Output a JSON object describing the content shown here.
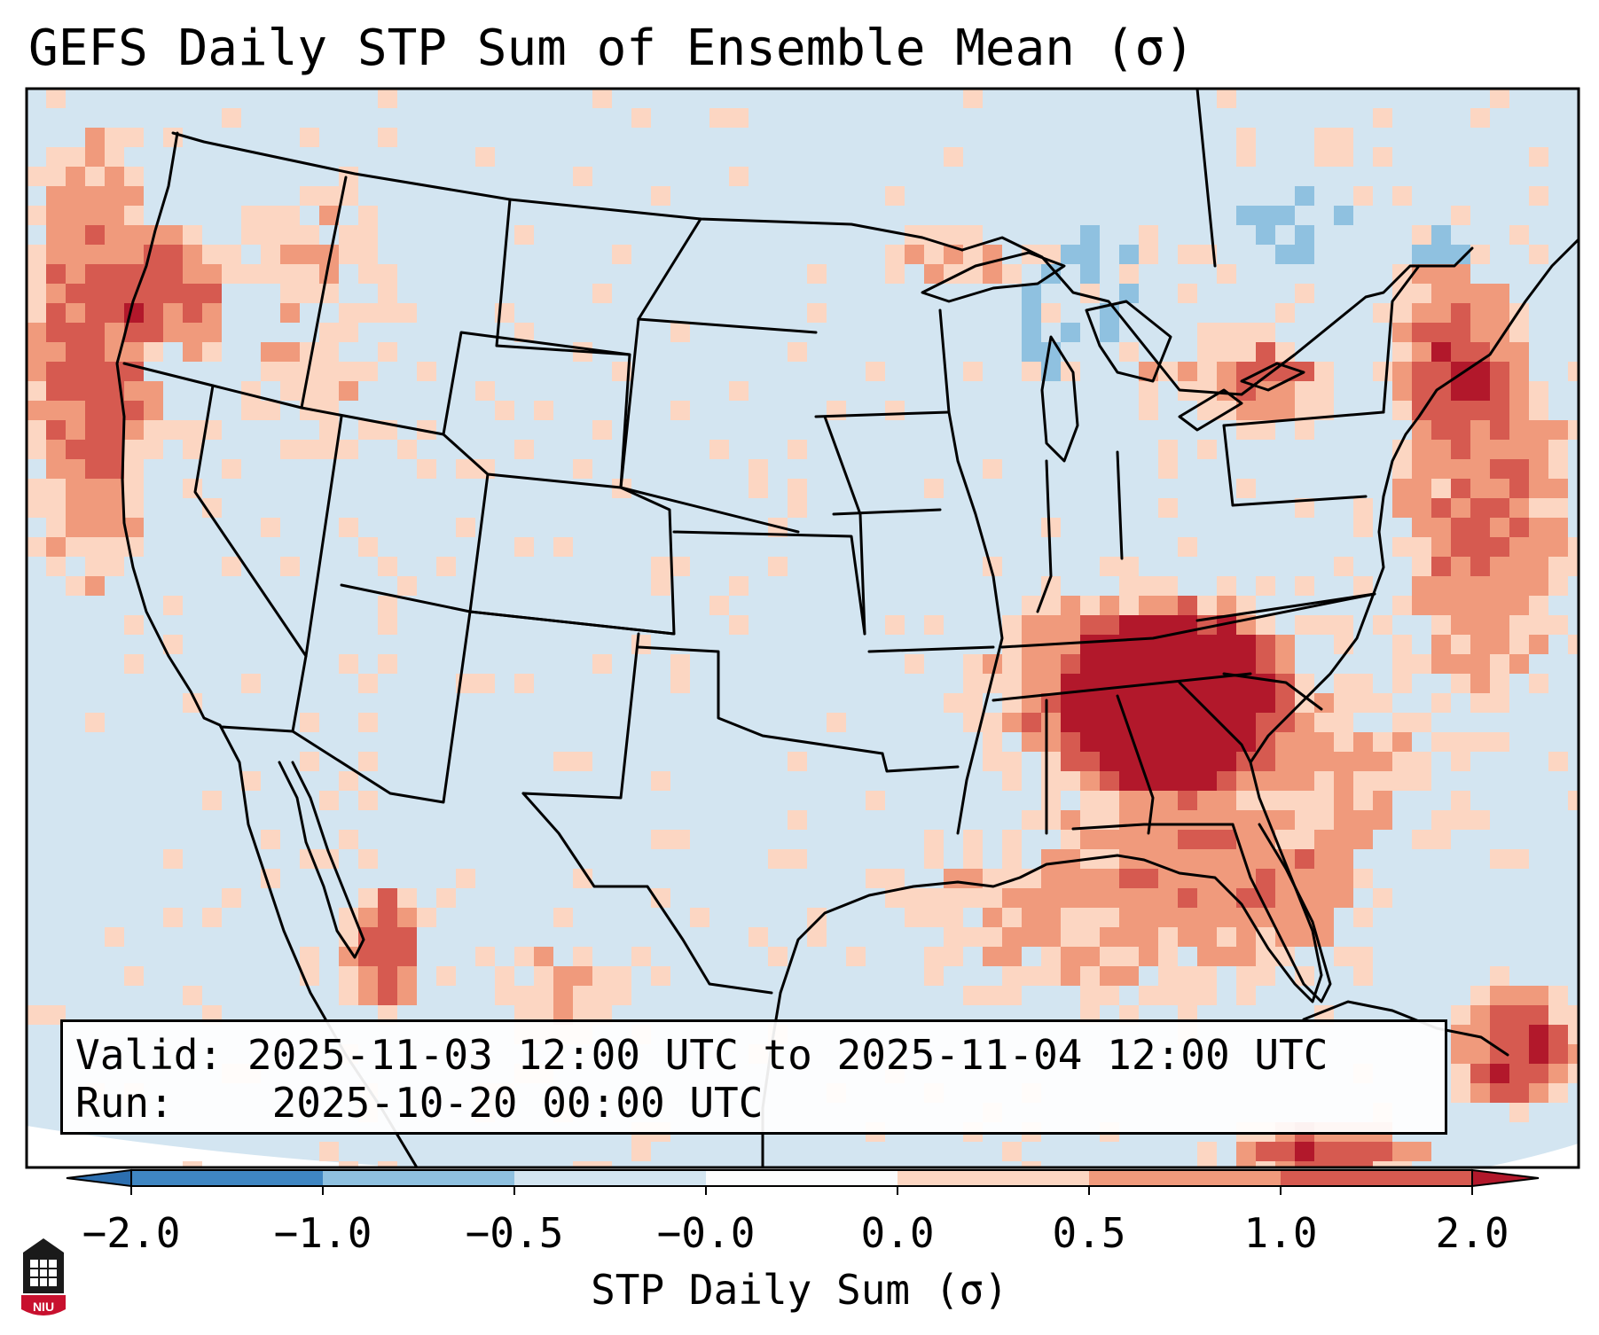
{
  "title": "GEFS Daily STP Sum of Ensemble Mean (σ)",
  "info": {
    "valid_label": "Valid:",
    "valid_value": "2025-11-03 12:00 UTC to 2025-11-04 12:00 UTC",
    "run_label": "Run:",
    "run_value": "2025-10-20 00:00 UTC"
  },
  "colorbar": {
    "label": "STP Daily Sum (σ)",
    "ticks": [
      "−2.0",
      "−1.0",
      "−0.5",
      "−0.0",
      "0.0",
      "0.5",
      "1.0",
      "2.0"
    ],
    "colors": [
      "#3f86c2",
      "#8fc1e0",
      "#d3e5f1",
      "#fbfcfd",
      "#fcd6c2",
      "#f09a7c",
      "#d65a50"
    ],
    "extend_low_color": "#2c6fb0",
    "extend_high_color": "#b2182b"
  },
  "map": {
    "ocean_color": "#d3e5f1",
    "positive_colors": [
      "#fcd6c2",
      "#f09a7c",
      "#d65a50",
      "#b2182b"
    ],
    "negative_colors": [
      "#8fc1e0"
    ]
  },
  "logo": {
    "text": "NIU",
    "color": "#c8102e"
  }
}
